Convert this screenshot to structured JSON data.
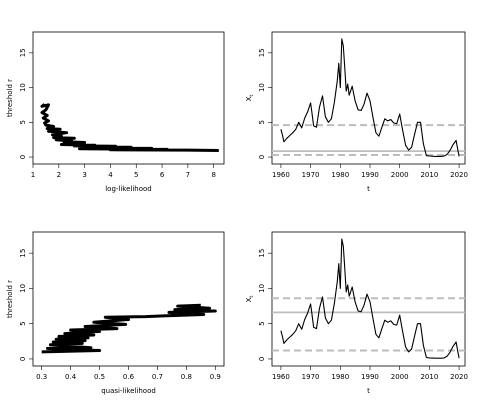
{
  "chart_data": [
    {
      "type": "line",
      "xlabel": "log-likelihood",
      "ylabel": "threshold r",
      "xlim": [
        1,
        8.4
      ],
      "ylim": [
        -1,
        18
      ],
      "xticks": [
        1,
        2,
        3,
        4,
        5,
        6,
        7,
        8
      ],
      "yticks": [
        0,
        5,
        10,
        15
      ],
      "line_color": "#000000",
      "series": [
        {
          "x": [
            1.45,
            1.35,
            1.6,
            1.5,
            1.35,
            1.55,
            1.4,
            1.6,
            1.45,
            1.5,
            1.8,
            1.55,
            2.05,
            1.6,
            2.3,
            1.75,
            2.1,
            1.8,
            2.6,
            1.9,
            2.5,
            2.2,
            3.0,
            2.4,
            2.9,
            2.1,
            3.4,
            2.6,
            4.2,
            3.0,
            4.8,
            3.2,
            5.6,
            2.8,
            6.2,
            4.0,
            7.0,
            8.2
          ],
          "y": [
            7.6,
            7.3,
            7.5,
            6.8,
            6.4,
            6.0,
            5.6,
            5.2,
            4.9,
            4.6,
            4.4,
            4.1,
            4.0,
            3.7,
            3.5,
            3.2,
            3.0,
            2.8,
            2.7,
            2.5,
            2.3,
            2.2,
            2.1,
            2.0,
            1.9,
            1.8,
            1.7,
            1.6,
            1.55,
            1.45,
            1.4,
            1.3,
            1.25,
            1.2,
            1.1,
            1.05,
            1.0,
            0.95
          ]
        }
      ]
    },
    {
      "type": "line",
      "xlabel": "t",
      "ylabel": "X",
      "ylabel_sub": "t",
      "xlim": [
        1957,
        2022
      ],
      "ylim": [
        -1,
        18
      ],
      "xticks": [
        1960,
        1970,
        1980,
        1990,
        2000,
        2010,
        2020
      ],
      "yticks": [
        0,
        5,
        10,
        15
      ],
      "hlines_dashed": [
        4.6,
        0.3
      ],
      "hlines_solid": [
        0.85
      ],
      "series": [
        {
          "x": [
            1960,
            1960.5,
            1961,
            1962,
            1963,
            1964,
            1965,
            1966,
            1967,
            1968,
            1969,
            1970,
            1970.5,
            1971,
            1972,
            1973,
            1974,
            1975,
            1976,
            1977,
            1978,
            1979,
            1979.5,
            1980,
            1980.5,
            1981,
            1981.5,
            1982,
            1982.5,
            1983,
            1984,
            1985,
            1986,
            1987,
            1988,
            1989,
            1990,
            1991,
            1992,
            1993,
            1994,
            1995,
            1996,
            1997,
            1998,
            1999,
            2000,
            2001,
            2002,
            2003,
            2004,
            2005,
            2006,
            2007,
            2008,
            2009,
            2010,
            2012,
            2014,
            2015,
            2016,
            2017,
            2018,
            2019,
            2019.5,
            2020
          ],
          "y": [
            4.0,
            3.2,
            2.2,
            2.7,
            3.1,
            3.5,
            4.0,
            5.0,
            4.2,
            5.6,
            6.5,
            7.8,
            6.2,
            4.5,
            4.3,
            7.2,
            8.8,
            5.8,
            5.0,
            5.5,
            7.9,
            11.0,
            13.5,
            10.0,
            17.0,
            16.0,
            13.0,
            9.5,
            10.5,
            8.9,
            10.2,
            8.1,
            6.8,
            6.7,
            7.6,
            9.2,
            8.1,
            5.7,
            3.5,
            3.0,
            4.3,
            5.5,
            5.2,
            5.4,
            4.9,
            4.8,
            6.2,
            3.9,
            1.7,
            1.0,
            1.4,
            3.2,
            5.0,
            5.0,
            1.9,
            0.2,
            0.15,
            0.1,
            0.1,
            0.15,
            0.4,
            1.0,
            1.8,
            2.4,
            1.2,
            0.1
          ]
        }
      ]
    },
    {
      "type": "line",
      "xlabel": "quasi-likelihood",
      "ylabel": "threshold r",
      "xlim": [
        0.27,
        0.93
      ],
      "ylim": [
        -1,
        18
      ],
      "xticks": [
        0.3,
        0.4,
        0.5,
        0.6,
        0.7,
        0.8,
        0.9
      ],
      "yticks": [
        0,
        5,
        10,
        15
      ],
      "series": [
        {
          "x": [
            0.3,
            0.5,
            0.32,
            0.47,
            0.33,
            0.44,
            0.34,
            0.45,
            0.35,
            0.46,
            0.36,
            0.48,
            0.38,
            0.5,
            0.4,
            0.56,
            0.45,
            0.59,
            0.48,
            0.6,
            0.52,
            0.66,
            0.72,
            0.86,
            0.74,
            0.9,
            0.76,
            0.88,
            0.77,
            0.85
          ],
          "y": [
            1.0,
            1.2,
            1.5,
            1.6,
            2.0,
            2.2,
            2.4,
            2.6,
            2.8,
            3.0,
            3.2,
            3.4,
            3.6,
            3.9,
            4.1,
            4.3,
            4.6,
            4.9,
            5.2,
            5.6,
            5.9,
            6.0,
            6.1,
            6.3,
            6.6,
            6.8,
            7.0,
            7.2,
            7.5,
            7.6
          ]
        }
      ]
    },
    {
      "type": "line",
      "xlabel": "t",
      "ylabel": "X",
      "ylabel_sub": "t",
      "xlim": [
        1957,
        2022
      ],
      "ylim": [
        -1,
        18
      ],
      "xticks": [
        1960,
        1970,
        1980,
        1990,
        2000,
        2010,
        2020
      ],
      "yticks": [
        0,
        5,
        10,
        15
      ],
      "hlines_dashed": [
        8.6,
        1.2
      ],
      "hlines_solid": [
        6.6
      ],
      "series": [
        {
          "x": [
            1960,
            1960.5,
            1961,
            1962,
            1963,
            1964,
            1965,
            1966,
            1967,
            1968,
            1969,
            1970,
            1970.5,
            1971,
            1972,
            1973,
            1974,
            1975,
            1976,
            1977,
            1978,
            1979,
            1979.5,
            1980,
            1980.5,
            1981,
            1981.5,
            1982,
            1982.5,
            1983,
            1984,
            1985,
            1986,
            1987,
            1988,
            1989,
            1990,
            1991,
            1992,
            1993,
            1994,
            1995,
            1996,
            1997,
            1998,
            1999,
            2000,
            2001,
            2002,
            2003,
            2004,
            2005,
            2006,
            2007,
            2008,
            2009,
            2010,
            2012,
            2014,
            2015,
            2016,
            2017,
            2018,
            2019,
            2019.5,
            2020
          ],
          "y": [
            4.0,
            3.2,
            2.2,
            2.7,
            3.1,
            3.5,
            4.0,
            5.0,
            4.2,
            5.6,
            6.5,
            7.8,
            6.2,
            4.5,
            4.3,
            7.2,
            8.8,
            5.8,
            5.0,
            5.5,
            7.9,
            11.0,
            13.5,
            10.0,
            17.0,
            16.0,
            13.0,
            9.5,
            10.5,
            8.9,
            10.2,
            8.1,
            6.8,
            6.7,
            7.6,
            9.2,
            8.1,
            5.7,
            3.5,
            3.0,
            4.3,
            5.5,
            5.2,
            5.4,
            4.9,
            4.8,
            6.2,
            3.9,
            1.7,
            1.0,
            1.4,
            3.2,
            5.0,
            5.0,
            1.9,
            0.2,
            0.15,
            0.1,
            0.1,
            0.15,
            0.4,
            1.0,
            1.8,
            2.4,
            1.2,
            0.1
          ]
        }
      ]
    }
  ]
}
